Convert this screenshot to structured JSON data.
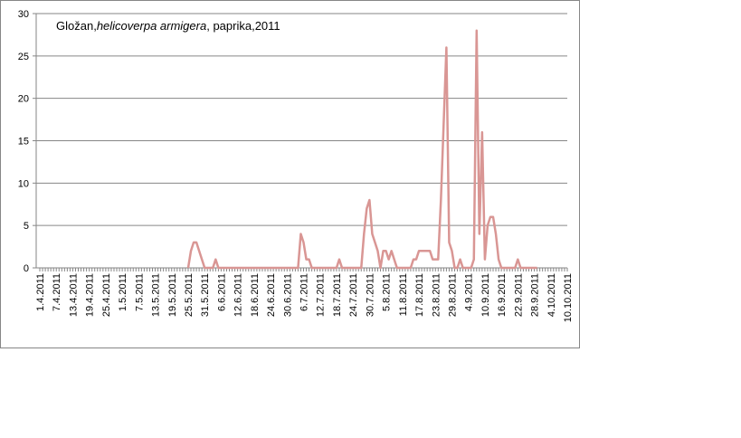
{
  "chart_data": {
    "type": "line",
    "title": [
      "Gložan,",
      "helicoverpa armigera",
      ", paprika,2011"
    ],
    "categories": [
      "1.4.2011",
      null,
      null,
      null,
      null,
      null,
      "7.4.2011",
      null,
      null,
      null,
      null,
      null,
      "13.4.2011",
      null,
      null,
      null,
      null,
      null,
      "19.4.2011",
      null,
      null,
      null,
      null,
      null,
      "25.4.2011",
      null,
      null,
      null,
      null,
      null,
      "1.5.2011",
      null,
      null,
      null,
      null,
      null,
      "7.5.2011",
      null,
      null,
      null,
      null,
      null,
      "13.5.2011",
      null,
      null,
      null,
      null,
      null,
      "19.5.2011",
      null,
      null,
      null,
      null,
      null,
      "25.5.2011",
      null,
      null,
      null,
      null,
      null,
      "31.5.2011",
      null,
      null,
      null,
      null,
      null,
      "6.6.2011",
      null,
      null,
      null,
      null,
      null,
      "12.6.2011",
      null,
      null,
      null,
      null,
      null,
      "18.6.2011",
      null,
      null,
      null,
      null,
      null,
      "24.6.2011",
      null,
      null,
      null,
      null,
      null,
      "30.6.2011",
      null,
      null,
      null,
      null,
      null,
      "6.7.2011",
      null,
      null,
      null,
      null,
      null,
      "12.7.2011",
      null,
      null,
      null,
      null,
      null,
      "18.7.2011",
      null,
      null,
      null,
      null,
      null,
      "24.7.2011",
      null,
      null,
      null,
      null,
      null,
      "30.7.2011",
      null,
      null,
      null,
      null,
      null,
      "5.8.2011",
      null,
      null,
      null,
      null,
      null,
      "11.8.2011",
      null,
      null,
      null,
      null,
      null,
      "17.8.2011",
      null,
      null,
      null,
      null,
      null,
      "23.8.2011",
      null,
      null,
      null,
      null,
      null,
      "29.8.2011",
      null,
      null,
      null,
      null,
      null,
      "4.9.2011",
      null,
      null,
      null,
      null,
      null,
      "10.9.2011",
      null,
      null,
      null,
      null,
      null,
      "16.9.2011",
      null,
      null,
      null,
      null,
      null,
      "22.9.2011",
      null,
      null,
      null,
      null,
      null,
      "28.9.2011",
      null,
      null,
      null,
      null,
      null,
      "4.10.2011",
      null,
      null,
      null,
      null,
      null,
      "10.10.2011"
    ],
    "series": [
      {
        "name": "helicoverpa armigera",
        "color": "#d99694",
        "values": [
          null,
          null,
          null,
          null,
          null,
          null,
          null,
          null,
          null,
          null,
          null,
          null,
          null,
          null,
          null,
          null,
          null,
          null,
          null,
          null,
          null,
          null,
          null,
          null,
          null,
          null,
          null,
          null,
          null,
          null,
          null,
          null,
          null,
          null,
          null,
          null,
          null,
          null,
          null,
          null,
          null,
          null,
          null,
          null,
          null,
          null,
          null,
          null,
          null,
          null,
          null,
          null,
          null,
          null,
          0,
          2,
          3,
          3,
          2,
          1,
          0,
          0,
          0,
          0,
          1,
          0,
          0,
          0,
          0,
          0,
          0,
          0,
          0,
          0,
          0,
          0,
          0,
          0,
          0,
          0,
          0,
          0,
          0,
          0,
          0,
          0,
          0,
          0,
          0,
          0,
          0,
          0,
          0,
          0,
          0,
          4,
          3,
          1,
          1,
          0,
          0,
          0,
          0,
          0,
          0,
          0,
          0,
          0,
          0,
          1,
          0,
          0,
          0,
          0,
          0,
          0,
          0,
          0,
          4,
          7,
          8,
          4,
          3,
          2,
          0,
          2,
          2,
          1,
          2,
          1,
          0,
          0,
          0,
          0,
          0,
          0,
          1,
          1,
          2,
          2,
          2,
          2,
          2,
          1,
          1,
          1,
          8,
          17,
          26,
          3,
          2,
          0,
          0,
          1,
          0,
          0,
          0,
          0,
          1,
          28,
          4,
          16,
          1,
          5,
          6,
          6,
          4,
          1,
          0,
          0,
          0,
          0,
          0,
          0,
          1,
          0,
          0,
          0,
          0,
          0,
          0,
          0,
          null,
          null,
          null,
          null,
          null,
          null,
          null,
          null,
          null,
          null,
          null
        ]
      }
    ],
    "ylim": [
      0,
      30
    ],
    "yticks": [
      0,
      5,
      10,
      15,
      20,
      25,
      30
    ],
    "grid": true
  }
}
